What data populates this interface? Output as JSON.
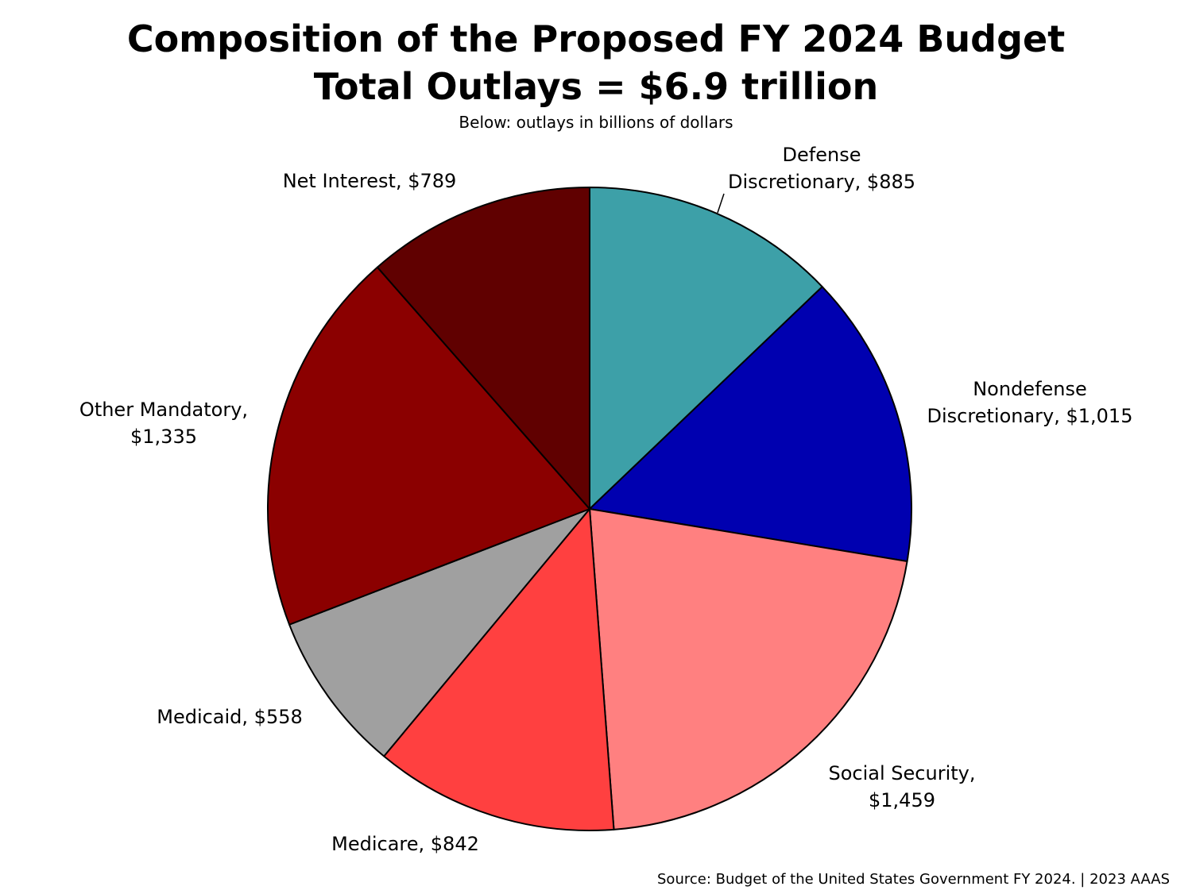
{
  "chart_data": {
    "type": "pie",
    "title": "Composition of the Proposed FY 2024 Budget",
    "subtitle": "Total Outlays = $6.9 trillion",
    "note": "Below: outlays in billions of dollars",
    "source": "Source: Budget of the United States Government FY 2024. | 2023 AAAS",
    "units": "billions of dollars",
    "start_angle_deg": 0,
    "direction": "clockwise",
    "slices": [
      {
        "name": "Defense Discretionary",
        "value": 885,
        "color": "#3da0a8",
        "label_lines": [
          "Defense",
          "Discretionary, $885"
        ]
      },
      {
        "name": "Nondefense Discretionary",
        "value": 1015,
        "color": "#0000b0",
        "label_lines": [
          "Nondefense",
          "Discretionary, $1,015"
        ]
      },
      {
        "name": "Social Security",
        "value": 1459,
        "color": "#ff8080",
        "label_lines": [
          "Social Security,",
          "$1,459"
        ]
      },
      {
        "name": "Medicare",
        "value": 842,
        "color": "#ff4040",
        "label_lines": [
          "Medicare, $842"
        ]
      },
      {
        "name": "Medicaid",
        "value": 558,
        "color": "#a0a0a0",
        "label_lines": [
          "Medicaid, $558"
        ]
      },
      {
        "name": "Other Mandatory",
        "value": 1335,
        "color": "#8b0000",
        "label_lines": [
          "Other Mandatory,",
          "$1,335"
        ]
      },
      {
        "name": "Net Interest",
        "value": 789,
        "color": "#600000",
        "label_lines": [
          "Net Interest, $789"
        ]
      }
    ]
  }
}
